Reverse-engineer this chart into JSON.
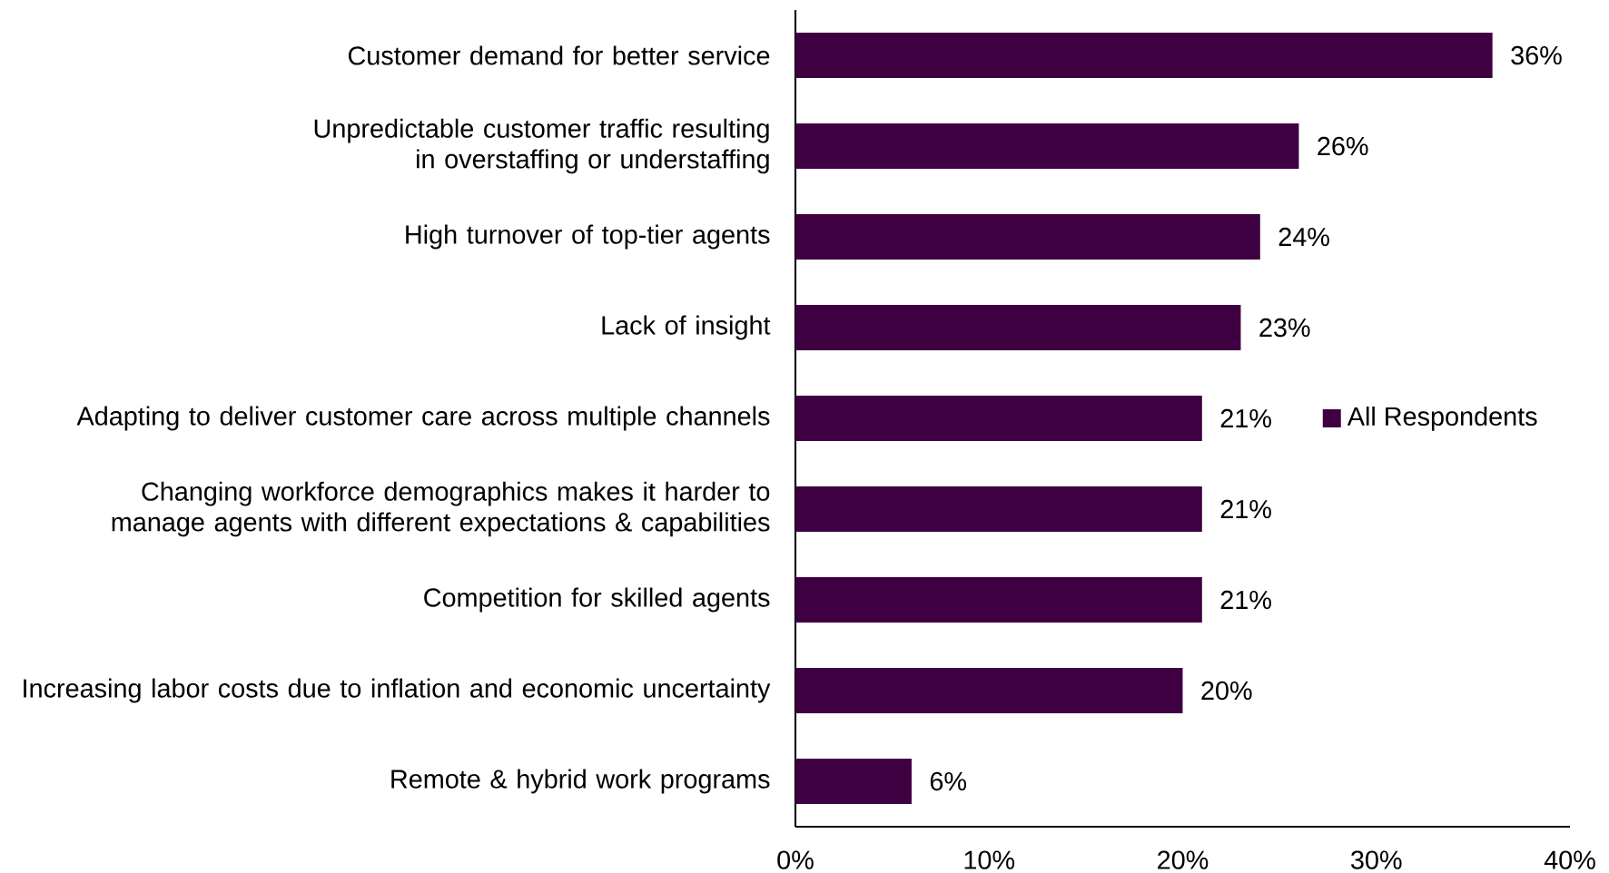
{
  "chart_data": {
    "type": "bar",
    "orientation": "horizontal",
    "categories": [
      "Customer demand for better service",
      "Unpredictable customer traffic resulting in overstaffing or understaffing",
      "High turnover of top-tier agents",
      "Lack of insight",
      "Adapting to deliver customer care across multiple channels",
      "Changing workforce demographics makes it harder to manage agents with different expectations & capabilities",
      "Competition for skilled agents",
      "Increasing labor costs due to inflation and economic uncertainty",
      "Remote & hybrid work programs"
    ],
    "series": [
      {
        "name": "All Respondents",
        "color": "#3f0041",
        "values": [
          36,
          26,
          24,
          23,
          21,
          21,
          21,
          20,
          6
        ],
        "value_labels": [
          "36%",
          "26%",
          "24%",
          "23%",
          "21%",
          "21%",
          "21%",
          "20%",
          "6%"
        ]
      }
    ],
    "xlim": [
      0,
      40
    ],
    "xticks": [
      {
        "value": 0,
        "label": "0%"
      },
      {
        "value": 10,
        "label": "10%"
      },
      {
        "value": 20,
        "label": "20%"
      },
      {
        "value": 30,
        "label": "30%"
      },
      {
        "value": 40,
        "label": "40%"
      }
    ],
    "legend": "right",
    "grid": false
  }
}
